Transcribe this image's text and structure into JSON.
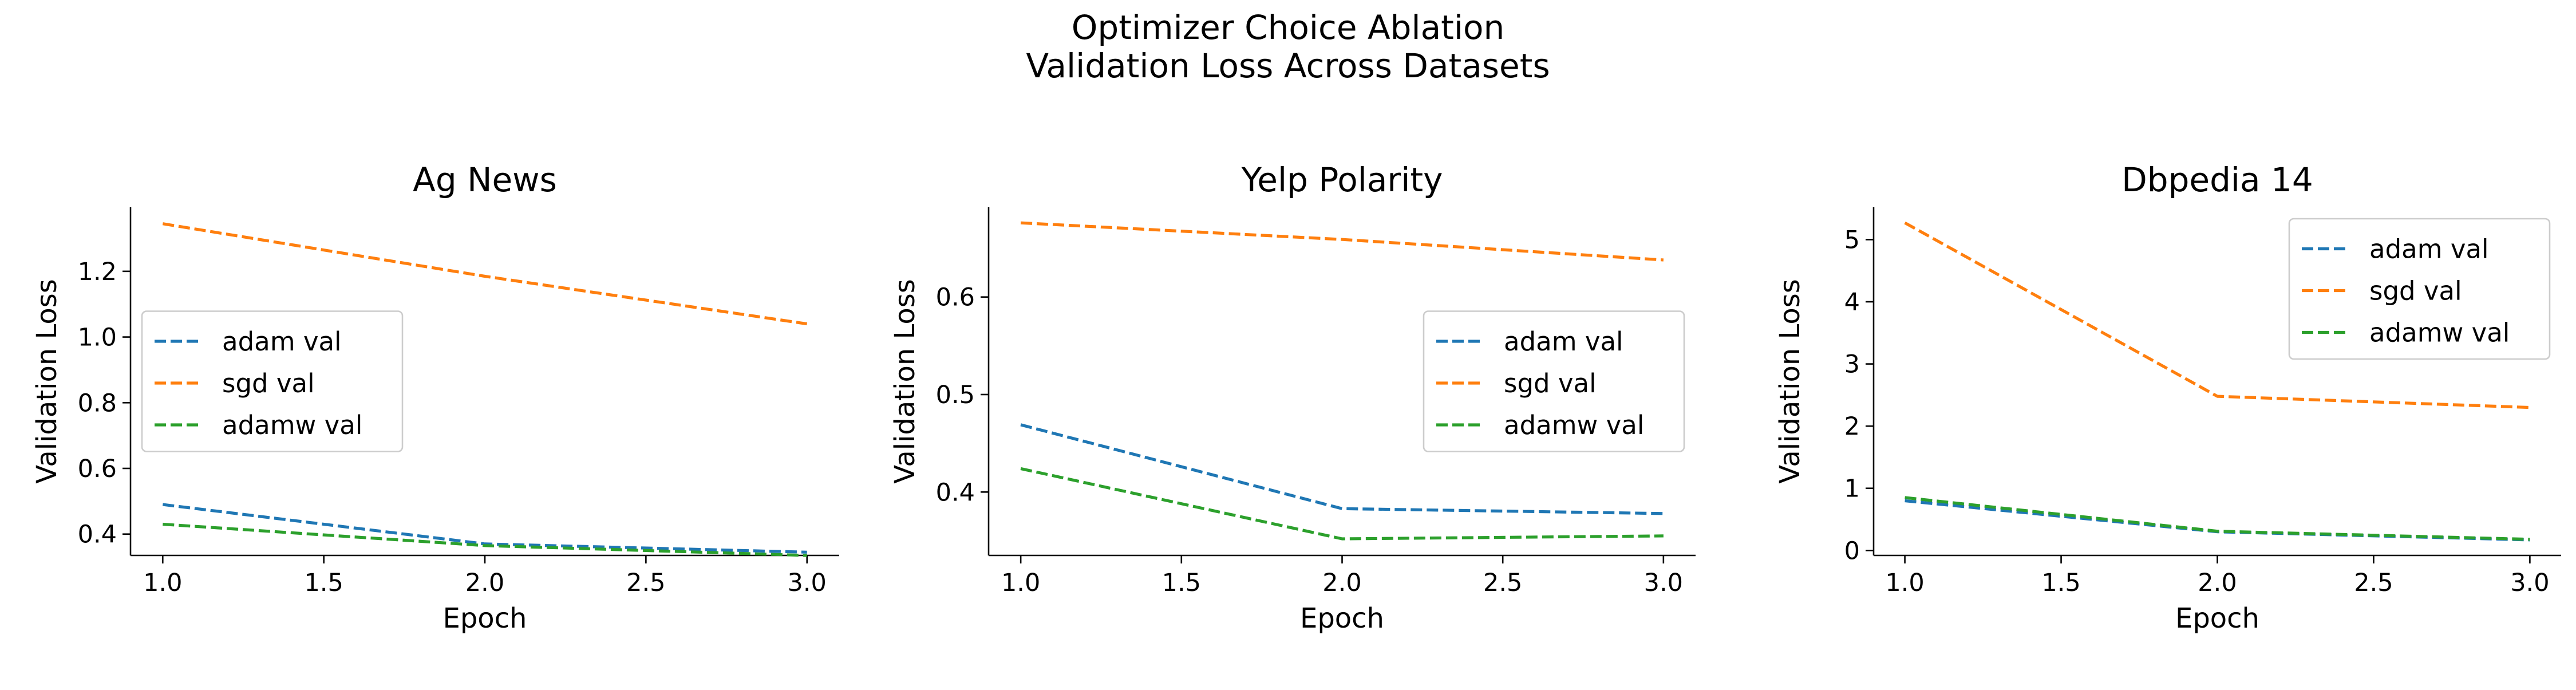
{
  "figure": {
    "suptitle_line1": "Optimizer Choice Ablation",
    "suptitle_line2": "Validation Loss Across Datasets"
  },
  "colors": {
    "adam": "#1f77b4",
    "sgd": "#ff7f0e",
    "adamw": "#2ca02c"
  },
  "chart_data": [
    {
      "type": "line",
      "title": "Ag News",
      "xlabel": "Epoch",
      "ylabel": "Validation Loss",
      "x": [
        1.0,
        2.0,
        3.0
      ],
      "xlim": [
        0.9,
        3.1
      ],
      "ylim": [
        0.335,
        1.395
      ],
      "xticks": [
        1.0,
        1.5,
        2.0,
        2.5,
        3.0
      ],
      "xtick_labels": [
        "1.0",
        "1.5",
        "2.0",
        "2.5",
        "3.0"
      ],
      "yticks": [
        0.4,
        0.6,
        0.8,
        1.0,
        1.2
      ],
      "ytick_labels": [
        "0.4",
        "0.6",
        "0.8",
        "1.0",
        "1.2"
      ],
      "legend_loc": "center-left",
      "series": [
        {
          "name": "adam val",
          "key": "adam",
          "values": [
            0.49,
            0.37,
            0.345
          ]
        },
        {
          "name": "sgd val",
          "key": "sgd",
          "values": [
            1.345,
            1.185,
            1.04
          ]
        },
        {
          "name": "adamw val",
          "key": "adamw",
          "values": [
            0.43,
            0.365,
            0.335
          ]
        }
      ]
    },
    {
      "type": "line",
      "title": "Yelp Polarity",
      "xlabel": "Epoch",
      "ylabel": "Validation Loss",
      "x": [
        1.0,
        2.0,
        3.0
      ],
      "xlim": [
        0.9,
        3.1
      ],
      "ylim": [
        0.335,
        0.692
      ],
      "xticks": [
        1.0,
        1.5,
        2.0,
        2.5,
        3.0
      ],
      "xtick_labels": [
        "1.0",
        "1.5",
        "2.0",
        "2.5",
        "3.0"
      ],
      "yticks": [
        0.4,
        0.5,
        0.6
      ],
      "ytick_labels": [
        "0.4",
        "0.5",
        "0.6"
      ],
      "legend_loc": "center-right",
      "series": [
        {
          "name": "adam val",
          "key": "adam",
          "values": [
            0.469,
            0.383,
            0.378
          ]
        },
        {
          "name": "sgd val",
          "key": "sgd",
          "values": [
            0.676,
            0.659,
            0.638
          ]
        },
        {
          "name": "adamw val",
          "key": "adamw",
          "values": [
            0.424,
            0.352,
            0.355
          ]
        }
      ]
    },
    {
      "type": "line",
      "title": "Dbpedia 14",
      "xlabel": "Epoch",
      "ylabel": "Validation Loss",
      "x": [
        1.0,
        2.0,
        3.0
      ],
      "xlim": [
        0.9,
        3.1
      ],
      "ylim": [
        -0.08,
        5.52
      ],
      "xticks": [
        1.0,
        1.5,
        2.0,
        2.5,
        3.0
      ],
      "xtick_labels": [
        "1.0",
        "1.5",
        "2.0",
        "2.5",
        "3.0"
      ],
      "yticks": [
        0,
        1,
        2,
        3,
        4,
        5
      ],
      "ytick_labels": [
        "0",
        "1",
        "2",
        "3",
        "4",
        "5"
      ],
      "legend_loc": "upper-right",
      "series": [
        {
          "name": "adam val",
          "key": "adam",
          "values": [
            0.8,
            0.3,
            0.17
          ]
        },
        {
          "name": "sgd val",
          "key": "sgd",
          "values": [
            5.27,
            2.48,
            2.3
          ]
        },
        {
          "name": "adamw val",
          "key": "adamw",
          "values": [
            0.85,
            0.31,
            0.18
          ]
        }
      ]
    }
  ]
}
